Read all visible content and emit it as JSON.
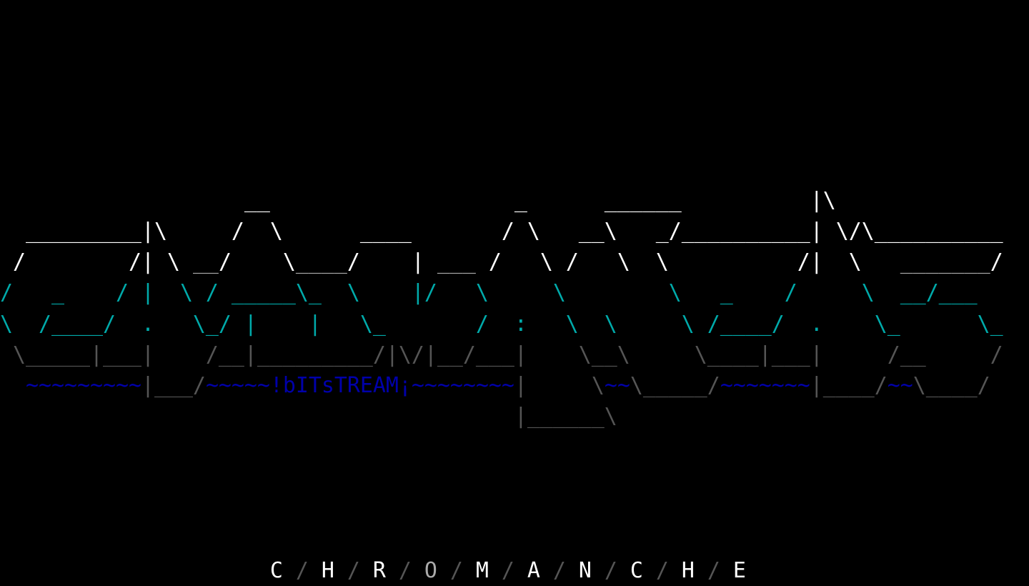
{
  "palette": {
    "W": "#ffffff",
    "L": "#aaaaaa",
    "C": "#00aaaa",
    "D": "#555555",
    "B": "#0000aa"
  },
  "art": {
    "rows": [
      {
        "line": 6,
        "segments": [
          [
            "                   __                   _      ______          |\\",
            "W"
          ]
        ]
      },
      {
        "line": 7,
        "segments": [
          [
            "  _________|\\     /  \\      ____       / \\   __\\   _/__________| \\/\\__________",
            "W"
          ]
        ]
      },
      {
        "line": 8,
        "segments": [
          [
            " /        /| \\ ",
            "W"
          ],
          [
            "__",
            "L"
          ],
          [
            "/    \\",
            "W"
          ],
          [
            "____",
            "L"
          ],
          [
            "/    | ",
            "W"
          ],
          [
            "___",
            "L"
          ],
          [
            " /   \\ /   \\  \\          /|  \\   ",
            "W"
          ],
          [
            "_______",
            "L"
          ],
          [
            "/",
            "W"
          ]
        ]
      },
      {
        "line": 9,
        "segments": [
          [
            "/   _    / |  \\ / _____\\_  \\    |/   \\     \\        \\   _    /     \\  __/___",
            "C"
          ]
        ]
      },
      {
        "line": 10,
        "segments": [
          [
            "\\  /____/  .   \\_/ |    |   \\_       /  :   \\  \\     \\ /____/  .    \\_      \\_",
            "C"
          ]
        ]
      },
      {
        "line": 11,
        "segments": [
          [
            " \\_____|___|    /__|_________/|\\/|__/___|    \\__\\     \\____|___|     /__     /",
            "D"
          ]
        ]
      },
      {
        "line": 12,
        "segments": [
          [
            "  ~~~~~~~~~",
            "B"
          ],
          [
            "|___/",
            "D"
          ],
          [
            "~~~~~",
            "B"
          ],
          [
            "!bITsTREAM¡",
            "B"
          ],
          [
            "~~~~~~~~",
            "B"
          ],
          [
            "|     \\",
            "D"
          ],
          [
            "~~",
            "B"
          ],
          [
            "\\_____/",
            "D"
          ],
          [
            "~~~~~~~",
            "B"
          ],
          [
            "|____/",
            "D"
          ],
          [
            "~~",
            "B"
          ],
          [
            "\\____/",
            "D"
          ]
        ]
      },
      {
        "line": 13,
        "segments": [
          [
            "                                        |______\\",
            "D"
          ]
        ]
      },
      {
        "line": 18,
        "segments": [
          [
            "                     C",
            "W"
          ],
          [
            " / ",
            "D"
          ],
          [
            "H",
            "W"
          ],
          [
            " / ",
            "D"
          ],
          [
            "R",
            "W"
          ],
          [
            " / ",
            "D"
          ],
          [
            "O",
            "L"
          ],
          [
            " / ",
            "D"
          ],
          [
            "M",
            "W"
          ],
          [
            " / ",
            "D"
          ],
          [
            "A",
            "W"
          ],
          [
            " / ",
            "D"
          ],
          [
            "N",
            "W"
          ],
          [
            " / ",
            "D"
          ],
          [
            "C",
            "W"
          ],
          [
            " / ",
            "D"
          ],
          [
            "H",
            "W"
          ],
          [
            " / ",
            "D"
          ],
          [
            "E",
            "W"
          ]
        ]
      }
    ]
  }
}
